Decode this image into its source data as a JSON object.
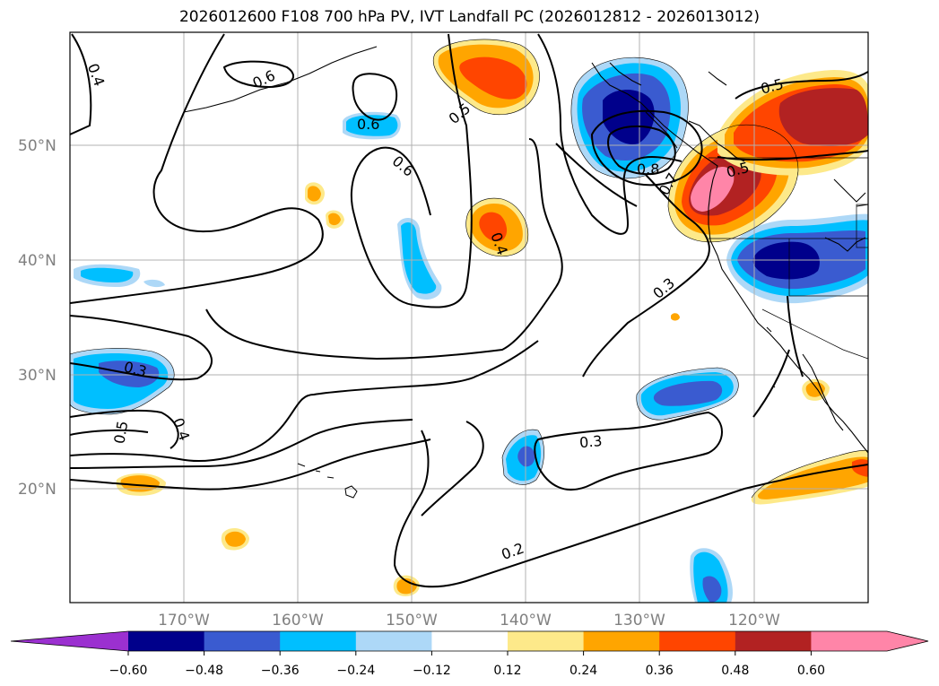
{
  "title": "2026012600 F108 700 hPa PV, IVT Landfall PC (2026012812 - 2026013012)",
  "map": {
    "lat_labels": [
      "50°N",
      "40°N",
      "30°N",
      "20°N"
    ],
    "lon_labels": [
      "170°W",
      "160°W",
      "150°W",
      "140°W",
      "130°W",
      "120°W"
    ],
    "grid": true,
    "contour_labels": [
      {
        "text": "0.4"
      },
      {
        "text": "0.6"
      },
      {
        "text": "0.6"
      },
      {
        "text": "0.5"
      },
      {
        "text": "0.6"
      },
      {
        "text": "0.4"
      },
      {
        "text": "0.8"
      },
      {
        "text": "0.7"
      },
      {
        "text": "0.5"
      },
      {
        "text": "0.5"
      },
      {
        "text": "0.3"
      },
      {
        "text": "0.3"
      },
      {
        "text": "0.4"
      },
      {
        "text": "0.5"
      },
      {
        "text": "0.3"
      },
      {
        "text": "0.2"
      }
    ]
  },
  "colorbar": {
    "ticks": [
      "−0.60",
      "−0.48",
      "−0.36",
      "−0.24",
      "−0.12",
      "0.12",
      "0.24",
      "0.36",
      "0.48",
      "0.60"
    ],
    "colors": [
      "#9b30d0",
      "#00008b",
      "#3a5bd0",
      "#00bfff",
      "#add8f7",
      "#ffffff",
      "#fde98a",
      "#ffa500",
      "#ff4500",
      "#b22222",
      "#ff85a8",
      "#ff85a8"
    ]
  }
}
